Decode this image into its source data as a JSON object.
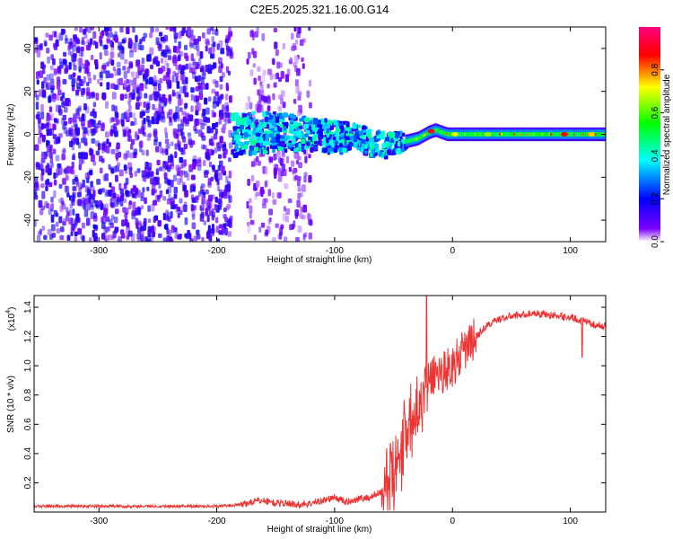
{
  "figure": {
    "title": "C2E5.2025.321.16.00.G14"
  },
  "chart_data": [
    {
      "type": "heatmap",
      "title": "C2E5.2025.321.16.00.G14",
      "xlabel": "Height of straight line (km)",
      "ylabel": "Frequency (Hz)",
      "xlim": [
        -355,
        130
      ],
      "ylim": [
        -50,
        50
      ],
      "x_ticks": [
        -300,
        -200,
        -100,
        0,
        100
      ],
      "x_tick_labels": [
        "-300",
        "-200",
        "-100",
        "0",
        "100"
      ],
      "y_ticks": [
        -40,
        -20,
        0,
        20,
        40
      ],
      "y_tick_labels": [
        "-40",
        "-20",
        "0",
        "20",
        "40"
      ],
      "colorbar": {
        "label": "Normalized spectral amplitude",
        "range": [
          0,
          1
        ],
        "ticks": [
          0.0,
          0.2,
          0.4,
          0.6,
          0.8
        ],
        "tick_labels": [
          "0.0",
          "0.2",
          "0.4",
          "0.6",
          "0.8"
        ],
        "colormap": [
          "#ffffff",
          "#7d00ff",
          "#0000ff",
          "#00ffff",
          "#00ff00",
          "#ffff00",
          "#ff0000",
          "#ff0080"
        ]
      },
      "regions": [
        {
          "name": "noise",
          "x_range": [
            -355,
            -188
          ],
          "freq_range": [
            -50,
            50
          ],
          "amplitude": 0.15
        },
        {
          "name": "sparse noise",
          "x_range": [
            -175,
            -120
          ],
          "freq_range": [
            -50,
            50
          ],
          "amplitude": 0.08
        },
        {
          "name": "emerging signal",
          "x_range": [
            -188,
            -40
          ],
          "freq_range": [
            -12,
            12
          ],
          "amplitude": 0.3
        },
        {
          "name": "tone",
          "x_range": [
            -40,
            130
          ],
          "freq_range": [
            -3,
            3
          ],
          "amplitude": 0.9
        }
      ],
      "tone_track": {
        "x": [
          -188,
          -150,
          -120,
          -100,
          -80,
          -70,
          -60,
          -45,
          -30,
          -20,
          -15,
          -5,
          0,
          50,
          100,
          130
        ],
        "freq": [
          0,
          1,
          0,
          -1,
          -2,
          -4,
          -5,
          -4,
          -2,
          1,
          2,
          0,
          0,
          0,
          0,
          0
        ]
      }
    },
    {
      "type": "line",
      "xlabel": "Height of straight line (km)",
      "ylabel": "SNR (10 * v/v)",
      "y_scale_label": "(x10",
      "y_scale_exponent": "4",
      "xlim": [
        -355,
        130
      ],
      "ylim": [
        0,
        1.48
      ],
      "x_ticks": [
        -300,
        -200,
        -100,
        0,
        100
      ],
      "x_tick_labels": [
        "-300",
        "-200",
        "-100",
        "0",
        "100"
      ],
      "y_ticks": [
        0.2,
        0.4,
        0.6,
        0.8,
        1.0,
        1.2,
        1.4
      ],
      "y_tick_labels": [
        "0.2",
        "0.4",
        "0.6",
        "0.8",
        "1.0",
        "1.2",
        "1.4"
      ],
      "series": [
        {
          "name": "SNR",
          "color": "#ee3333",
          "x": [
            -355,
            -300,
            -250,
            -200,
            -180,
            -170,
            -160,
            -150,
            -140,
            -130,
            -120,
            -110,
            -100,
            -90,
            -80,
            -70,
            -60,
            -55,
            -50,
            -45,
            -40,
            -35,
            -30,
            -25,
            -20,
            -15,
            -10,
            -5,
            0,
            5,
            10,
            15,
            20,
            25,
            30,
            40,
            50,
            60,
            70,
            80,
            90,
            100,
            110,
            120,
            130
          ],
          "y": [
            0.04,
            0.04,
            0.04,
            0.04,
            0.05,
            0.07,
            0.08,
            0.06,
            0.06,
            0.05,
            0.06,
            0.08,
            0.1,
            0.07,
            0.09,
            0.1,
            0.14,
            0.18,
            0.22,
            0.35,
            0.55,
            0.65,
            0.75,
            0.85,
            0.9,
            0.95,
            0.95,
            0.98,
            1.0,
            1.05,
            1.1,
            1.15,
            1.2,
            1.24,
            1.28,
            1.32,
            1.34,
            1.35,
            1.36,
            1.35,
            1.34,
            1.33,
            1.31,
            1.28,
            1.27
          ]
        }
      ]
    }
  ]
}
